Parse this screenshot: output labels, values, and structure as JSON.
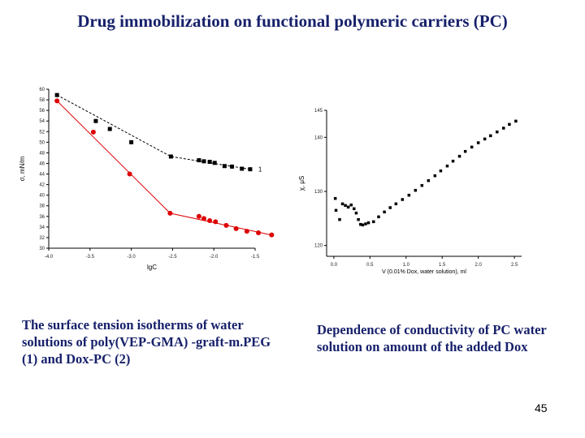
{
  "title": "Drug immobilization on functional polymeric carriers (PC)",
  "captions": {
    "left": "The surface tension isotherms of water solutions of poly(VEP-GMA) -graft-m.PEG (1) and Dox-PC (2)",
    "right": "Dependence of conductivity of PC water solution on amount of the added Dox"
  },
  "page_number": "45",
  "chart_data": [
    {
      "type": "line",
      "title": "",
      "xlabel": "lgC",
      "ylabel": "σ, mN/m",
      "xlim": [
        -4.0,
        -1.5
      ],
      "ylim": [
        30,
        60
      ],
      "x_ticks": [
        "-4.0",
        "-3.5",
        "-3.0",
        "-2.5",
        "-2.0",
        "-1.5"
      ],
      "y_ticks": [
        "30",
        "32",
        "34",
        "36",
        "38",
        "40",
        "42",
        "44",
        "46",
        "48",
        "50",
        "52",
        "54",
        "56",
        "58",
        "60"
      ],
      "grid": false,
      "series": [
        {
          "name": "1",
          "color": "#000000",
          "marker": "square",
          "x": [
            -3.9,
            -3.43,
            -3.26,
            -3.0,
            -2.52,
            -2.18,
            -2.12,
            -2.05,
            -1.99,
            -1.87,
            -1.78,
            -1.66,
            -1.56
          ],
          "y": [
            58.9,
            54.0,
            52.5,
            50.0,
            47.3,
            46.6,
            46.4,
            46.3,
            46.1,
            45.5,
            45.4,
            45.0,
            44.9
          ],
          "fit": {
            "x": [
              -3.9,
              -2.52,
              -1.56
            ],
            "y": [
              58.9,
              47.3,
              44.9
            ]
          }
        },
        {
          "name": "2",
          "color": "#dd0000",
          "marker": "circle",
          "x": [
            -3.9,
            -3.46,
            -3.02,
            -2.53,
            -2.18,
            -2.12,
            -2.05,
            -1.98,
            -1.85,
            -1.73,
            -1.6,
            -1.46,
            -1.3
          ],
          "y": [
            57.8,
            51.9,
            44.0,
            36.6,
            36.0,
            35.6,
            35.2,
            35.0,
            34.3,
            33.7,
            33.2,
            32.9,
            32.5
          ],
          "fit": {
            "x": [
              -3.9,
              -2.53,
              -1.3
            ],
            "y": [
              57.8,
              36.6,
              32.5
            ]
          }
        }
      ]
    },
    {
      "type": "scatter",
      "title": "",
      "xlabel": "V (0.01% Dox, water solution), ml",
      "ylabel": "χ, μS",
      "xlim": [
        -0.1,
        2.6
      ],
      "ylim": [
        118,
        145
      ],
      "x_ticks": [
        "0.0",
        "0.5",
        "1.0",
        "1.5",
        "2.0",
        "2.5"
      ],
      "y_ticks": [
        "120",
        "130",
        "140",
        "145"
      ],
      "grid": false,
      "series": [
        {
          "color": "#000000",
          "marker": "square",
          "x": [
            0.02,
            0.03,
            0.08,
            0.12,
            0.16,
            0.2,
            0.24,
            0.28,
            0.31,
            0.34,
            0.37,
            0.4,
            0.44,
            0.48,
            0.55,
            0.62,
            0.7,
            0.78,
            0.86,
            0.95,
            1.04,
            1.13,
            1.22,
            1.31,
            1.4,
            1.48,
            1.57,
            1.65,
            1.74,
            1.82,
            1.91,
            2.0,
            2.09,
            2.17,
            2.26,
            2.35,
            2.43,
            2.52
          ],
          "y": [
            128.7,
            126.5,
            124.8,
            127.7,
            127.4,
            127.1,
            127.5,
            126.8,
            126.0,
            124.8,
            123.9,
            123.8,
            124.0,
            124.2,
            124.4,
            125.3,
            126.2,
            127.0,
            127.7,
            128.5,
            129.3,
            130.2,
            131.1,
            132.0,
            132.9,
            133.8,
            134.7,
            135.6,
            136.5,
            137.4,
            138.2,
            139.0,
            139.7,
            140.3,
            141.0,
            141.7,
            142.4,
            143.0
          ]
        }
      ]
    }
  ]
}
